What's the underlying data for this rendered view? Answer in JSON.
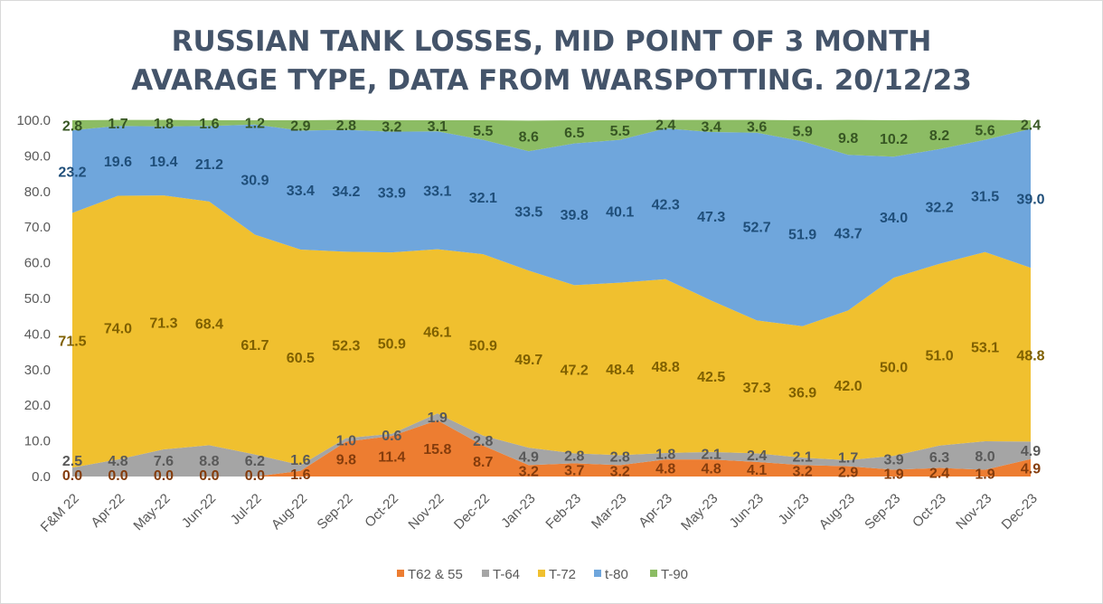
{
  "chart_data": {
    "type": "area",
    "stacked": "percent",
    "title_lines": [
      "RUSSIAN TANK LOSSES, MID POINT OF 3 MONTH",
      "AVARAGE TYPE, DATA FROM WARSPOTTING. 20/12/23"
    ],
    "ylim": [
      0,
      100
    ],
    "yticks": [
      "0.0",
      "10.0",
      "20.0",
      "30.0",
      "40.0",
      "50.0",
      "60.0",
      "70.0",
      "80.0",
      "90.0",
      "100.0"
    ],
    "categories": [
      "F&M 22",
      "Apr-22",
      "May-22",
      "Jun-22",
      "Jul-22",
      "Aug-22",
      "Sep-22",
      "Oct-22",
      "Nov-22",
      "Dec-22",
      "Jan-23",
      "Feb-23",
      "Mar-23",
      "Apr-23",
      "May-23",
      "Jun-23",
      "Jul-23",
      "Aug-23",
      "Sep-23",
      "Oct-23",
      "Nov-23",
      "Dec-23"
    ],
    "legend_position": "bottom",
    "series": [
      {
        "name": "T62 & 55",
        "color": "#ed7d31",
        "label_color": "#843c0c",
        "values": [
          0.0,
          0.0,
          0.0,
          0.0,
          0.0,
          1.6,
          9.8,
          11.4,
          15.8,
          8.7,
          3.2,
          3.7,
          3.2,
          4.8,
          4.8,
          4.1,
          3.2,
          2.9,
          1.9,
          2.4,
          1.9,
          4.9
        ]
      },
      {
        "name": "T-64",
        "color": "#a5a5a5",
        "label_color": "#595959",
        "values": [
          2.5,
          4.8,
          7.6,
          8.8,
          6.2,
          1.6,
          1.0,
          0.6,
          1.9,
          2.8,
          4.9,
          2.8,
          2.8,
          1.8,
          2.1,
          2.4,
          2.1,
          1.7,
          3.9,
          6.3,
          8.0,
          4.9
        ]
      },
      {
        "name": "T-72",
        "color": "#f0c02f",
        "label_color": "#7f6000",
        "values": [
          71.5,
          74.0,
          71.3,
          68.4,
          61.7,
          60.5,
          52.3,
          50.9,
          46.1,
          50.9,
          49.7,
          47.2,
          48.4,
          48.8,
          42.5,
          37.3,
          36.9,
          42.0,
          50.0,
          51.0,
          53.1,
          48.8
        ]
      },
      {
        "name": "t-80",
        "color": "#6fa6dc",
        "label_color": "#1f4e79",
        "values": [
          23.2,
          19.6,
          19.4,
          21.2,
          30.9,
          33.4,
          34.2,
          33.9,
          33.1,
          32.1,
          33.5,
          39.8,
          40.1,
          42.3,
          47.3,
          52.7,
          51.9,
          43.7,
          34.0,
          32.2,
          31.5,
          39.0
        ]
      },
      {
        "name": "T-90",
        "color": "#8cbc64",
        "label_color": "#375623",
        "values": [
          2.8,
          1.7,
          1.8,
          1.6,
          1.2,
          2.9,
          2.8,
          3.2,
          3.1,
          5.5,
          8.6,
          6.5,
          5.5,
          2.4,
          3.4,
          3.6,
          5.9,
          9.8,
          10.2,
          8.2,
          5.6,
          2.4
        ]
      }
    ]
  }
}
